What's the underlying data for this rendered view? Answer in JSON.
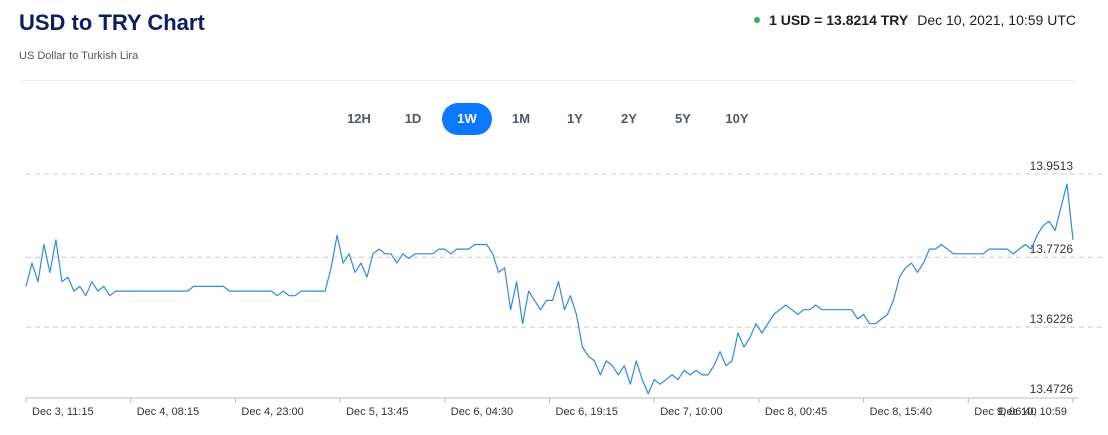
{
  "header": {
    "title": "USD to TRY Chart",
    "subtitle": "US Dollar to Turkish Lira",
    "rate_text": "1 USD = 13.8214 TRY",
    "timestamp": "Dec 10, 2021, 10:59 UTC",
    "status_dot_color": "#2db04e"
  },
  "tabs": [
    {
      "label": "12H"
    },
    {
      "label": "1D"
    },
    {
      "label": "1W",
      "active": true
    },
    {
      "label": "1M"
    },
    {
      "label": "1Y"
    },
    {
      "label": "2Y"
    },
    {
      "label": "5Y"
    },
    {
      "label": "10Y"
    }
  ],
  "accent_color": "#0a78ff",
  "chart_data": {
    "type": "line",
    "title": "",
    "xlabel": "",
    "ylabel": "",
    "ylim": [
      13.4726,
      13.9513
    ],
    "y_ticks": [
      "13.9513",
      "13.7726",
      "13.6226",
      "13.4726"
    ],
    "x_ticks": [
      "Dec 3, 11:15",
      "Dec 4, 08:15",
      "Dec 4, 23:00",
      "Dec 5, 13:45",
      "Dec 6, 04:30",
      "Dec 6, 19:15",
      "Dec 7, 10:00",
      "Dec 8, 00:45",
      "Dec 8, 15:40",
      "Dec 9, 06:40",
      "Dec 10, 10:59"
    ],
    "grid": true,
    "series_color": "#2f89e0",
    "series": [
      {
        "values": [
          13.71,
          13.76,
          13.72,
          13.8,
          13.74,
          13.81,
          13.72,
          13.73,
          13.7,
          13.71,
          13.69,
          13.72,
          13.7,
          13.71,
          13.69,
          13.7,
          13.7,
          13.7,
          13.7,
          13.7,
          13.7,
          13.7,
          13.7,
          13.7,
          13.7,
          13.7,
          13.7,
          13.7,
          13.71,
          13.71,
          13.71,
          13.71,
          13.71,
          13.71,
          13.7,
          13.7,
          13.7,
          13.7,
          13.7,
          13.7,
          13.7,
          13.7,
          13.69,
          13.7,
          13.69,
          13.69,
          13.7,
          13.7,
          13.7,
          13.7,
          13.7,
          13.75,
          13.82,
          13.76,
          13.78,
          13.74,
          13.76,
          13.73,
          13.78,
          13.79,
          13.78,
          13.78,
          13.76,
          13.78,
          13.77,
          13.78,
          13.78,
          13.78,
          13.78,
          13.79,
          13.79,
          13.78,
          13.79,
          13.79,
          13.79,
          13.8,
          13.8,
          13.8,
          13.78,
          13.74,
          13.75,
          13.66,
          13.72,
          13.63,
          13.7,
          13.68,
          13.66,
          13.68,
          13.68,
          13.72,
          13.66,
          13.69,
          13.65,
          13.58,
          13.56,
          13.55,
          13.52,
          13.55,
          13.54,
          13.52,
          13.54,
          13.5,
          13.55,
          13.51,
          13.48,
          13.51,
          13.5,
          13.51,
          13.52,
          13.51,
          13.53,
          13.52,
          13.53,
          13.52,
          13.52,
          13.54,
          13.57,
          13.54,
          13.55,
          13.61,
          13.58,
          13.6,
          13.63,
          13.61,
          13.63,
          13.65,
          13.66,
          13.67,
          13.66,
          13.65,
          13.66,
          13.66,
          13.67,
          13.66,
          13.66,
          13.66,
          13.66,
          13.66,
          13.66,
          13.64,
          13.65,
          13.63,
          13.63,
          13.64,
          13.65,
          13.68,
          13.73,
          13.75,
          13.76,
          13.74,
          13.76,
          13.79,
          13.79,
          13.8,
          13.79,
          13.78,
          13.78,
          13.78,
          13.78,
          13.78,
          13.78,
          13.79,
          13.79,
          13.79,
          13.79,
          13.78,
          13.79,
          13.8,
          13.79,
          13.82,
          13.84,
          13.85,
          13.83,
          13.88,
          13.93,
          13.81
        ]
      }
    ]
  }
}
